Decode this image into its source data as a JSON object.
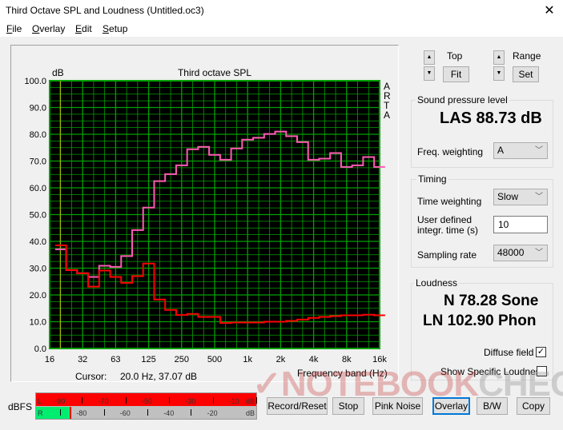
{
  "window": {
    "title": "Third Octave SPL and Loudness (Untitled.oc3)",
    "close_icon": "close-icon"
  },
  "menu": [
    "File",
    "Overlay",
    "Edit",
    "Setup"
  ],
  "chart_data": {
    "type": "line",
    "title": "Third octave SPL",
    "ylabel": "dB",
    "xlabel": "Frequency band (Hz)",
    "side_label": [
      "A",
      "R",
      "T",
      "A"
    ],
    "ylim": [
      0,
      100
    ],
    "yticks": [
      "0.0",
      "10.0",
      "20.0",
      "30.0",
      "40.0",
      "50.0",
      "60.0",
      "70.0",
      "80.0",
      "90.0",
      "100.0"
    ],
    "xticks": [
      "16",
      "32",
      "63",
      "125",
      "250",
      "500",
      "1k",
      "2k",
      "4k",
      "8k",
      "16k"
    ],
    "x_scale": "log",
    "grid": true,
    "bands": [
      "20",
      "25",
      "31.5",
      "40",
      "50",
      "63",
      "80",
      "100",
      "125",
      "160",
      "200",
      "250",
      "315",
      "400",
      "500",
      "630",
      "800",
      "1k",
      "1.25k",
      "1.6k",
      "2k",
      "2.5k",
      "3.15k",
      "4k",
      "5k",
      "6.3k",
      "8k",
      "10k",
      "12.5k",
      "16k"
    ],
    "series": [
      {
        "color": "#ff5ab4",
        "values": [
          37.0,
          29.3,
          28.1,
          26.7,
          30.9,
          30.5,
          34.5,
          44.2,
          52.6,
          62.5,
          65.1,
          68.4,
          74.4,
          75.3,
          72.3,
          70.5,
          74.7,
          78.0,
          78.7,
          80.1,
          81.0,
          79.3,
          77.1,
          70.5,
          70.9,
          73.0,
          67.8,
          68.4,
          71.5,
          67.8
        ]
      },
      {
        "color": "#ff0000",
        "values": [
          38.5,
          29.3,
          28.1,
          23.1,
          29.1,
          26.7,
          24.5,
          27.0,
          31.7,
          18.3,
          14.4,
          12.5,
          12.9,
          11.8,
          11.8,
          9.5,
          9.7,
          9.7,
          9.7,
          10.0,
          10.0,
          10.3,
          10.8,
          11.4,
          11.8,
          12.1,
          12.4,
          12.4,
          12.6,
          12.4
        ]
      }
    ],
    "cursor_freq_hz": 20,
    "colors": {
      "background": "#000000",
      "grid": "#00a000",
      "cursor": "#d0c000"
    }
  },
  "cursor_readout": {
    "label": "Cursor:",
    "value": "20.0 Hz, 37.07 dB"
  },
  "controls": {
    "top_label": "Top",
    "fit": "Fit",
    "range_label": "Range",
    "set": "Set"
  },
  "spl": {
    "title": "Sound pressure level",
    "value": "LAS 88.73 dB",
    "freq_weighting_label": "Freq. weighting",
    "freq_weighting": "A"
  },
  "timing": {
    "title": "Timing",
    "time_weighting_label": "Time weighting",
    "time_weighting": "Slow",
    "integr_label_1": "User defined",
    "integr_label_2": "integr. time (s)",
    "integr_time": "10",
    "sampling_rate_label": "Sampling rate",
    "sampling_rate": "48000"
  },
  "loudness": {
    "title": "Loudness",
    "n": "N 78.28 Sone",
    "ln": "LN 102.90 Phon",
    "diffuse_field": "Diffuse field",
    "diffuse_checked": true,
    "show_specific": "Show Specific Loudness",
    "show_specific_checked": false
  },
  "meter": {
    "label": "dBFS",
    "left_channel": "L",
    "right_channel": "R",
    "unit": "dB",
    "left_ticks": [
      "-90",
      "-70",
      "-50",
      "-30",
      "-10"
    ],
    "right_ticks": [
      "-80",
      "-60",
      "-40",
      "-20"
    ],
    "left_level_dbfs": 0,
    "right_level_dbfs": -93
  },
  "buttons": [
    "Record/Reset",
    "Stop",
    "Pink Noise",
    "Overlay",
    "B/W",
    "Copy"
  ],
  "watermark": {
    "a": "NOTEBOOK",
    "b": "CHECK"
  }
}
